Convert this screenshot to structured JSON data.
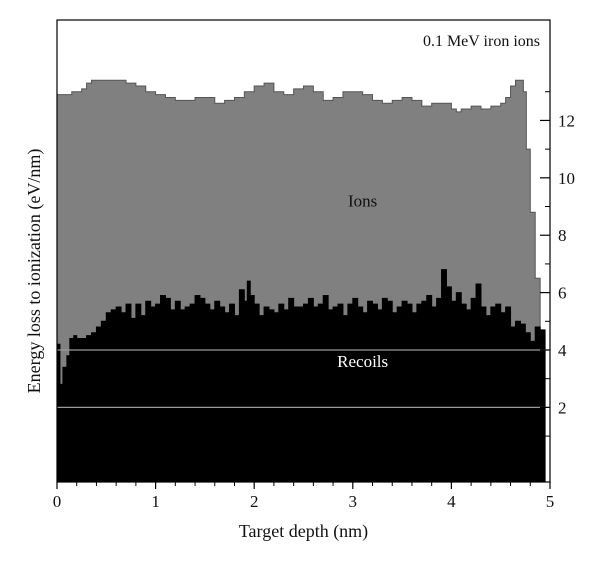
{
  "chart_data": {
    "type": "area",
    "title": "0.1 MeV iron ions",
    "xlabel": "Target depth (nm)",
    "ylabel": "Energy loss to ionization (eV/nm)",
    "xlim": [
      0,
      5
    ],
    "ylim": [
      -0.6,
      15.5
    ],
    "x_ticks": [
      0,
      1,
      2,
      3,
      4,
      5
    ],
    "y_ticks": [
      2,
      4,
      6,
      8,
      10,
      12
    ],
    "y_axis_side": "right",
    "grid": false,
    "series": [
      {
        "name": "Ions",
        "color": "#808080",
        "x": [
          0,
          0.05,
          0.1,
          0.15,
          0.2,
          0.25,
          0.3,
          0.35,
          0.4,
          0.45,
          0.5,
          0.6,
          0.7,
          0.8,
          0.9,
          1.0,
          1.1,
          1.2,
          1.3,
          1.4,
          1.5,
          1.6,
          1.7,
          1.8,
          1.9,
          2.0,
          2.1,
          2.2,
          2.3,
          2.4,
          2.5,
          2.6,
          2.7,
          2.8,
          2.9,
          3.0,
          3.1,
          3.2,
          3.3,
          3.4,
          3.5,
          3.6,
          3.7,
          3.8,
          3.9,
          4.0,
          4.05,
          4.1,
          4.2,
          4.3,
          4.4,
          4.5,
          4.55,
          4.6,
          4.65,
          4.7,
          4.73,
          4.76,
          4.8,
          4.85,
          4.9,
          4.95
        ],
        "values": [
          12.9,
          12.9,
          12.9,
          13.0,
          13.0,
          13.1,
          13.3,
          13.4,
          13.4,
          13.4,
          13.4,
          13.4,
          13.3,
          13.2,
          13.0,
          12.9,
          12.8,
          12.7,
          12.7,
          12.8,
          12.8,
          12.6,
          12.7,
          12.8,
          13.0,
          13.2,
          13.3,
          13.0,
          12.9,
          13.1,
          13.2,
          13.0,
          12.7,
          12.8,
          13.0,
          13.0,
          12.9,
          12.7,
          12.6,
          12.7,
          12.8,
          12.7,
          12.5,
          12.6,
          12.6,
          12.4,
          12.3,
          12.4,
          12.5,
          12.4,
          12.5,
          12.6,
          12.8,
          13.2,
          13.4,
          13.4,
          13.0,
          11.0,
          8.8,
          6.5,
          4.5,
          1.5
        ]
      },
      {
        "name": "Recoils",
        "color": "#000000",
        "x": [
          0,
          0.03,
          0.06,
          0.1,
          0.13,
          0.17,
          0.2,
          0.25,
          0.3,
          0.35,
          0.4,
          0.45,
          0.5,
          0.55,
          0.6,
          0.65,
          0.7,
          0.75,
          0.8,
          0.85,
          0.9,
          0.95,
          1.0,
          1.05,
          1.1,
          1.15,
          1.2,
          1.25,
          1.3,
          1.35,
          1.4,
          1.45,
          1.5,
          1.55,
          1.6,
          1.65,
          1.7,
          1.75,
          1.8,
          1.85,
          1.9,
          1.93,
          1.96,
          2.0,
          2.05,
          2.1,
          2.15,
          2.2,
          2.25,
          2.3,
          2.35,
          2.4,
          2.45,
          2.5,
          2.55,
          2.6,
          2.65,
          2.7,
          2.75,
          2.8,
          2.85,
          2.9,
          2.95,
          3.0,
          3.05,
          3.1,
          3.15,
          3.2,
          3.25,
          3.3,
          3.35,
          3.4,
          3.45,
          3.5,
          3.55,
          3.6,
          3.65,
          3.7,
          3.75,
          3.8,
          3.85,
          3.9,
          3.95,
          4.0,
          4.05,
          4.1,
          4.15,
          4.2,
          4.25,
          4.3,
          4.35,
          4.4,
          4.45,
          4.5,
          4.55,
          4.6,
          4.65,
          4.7,
          4.75,
          4.8,
          4.85,
          4.9,
          4.95
        ],
        "values": [
          4.2,
          2.8,
          3.4,
          3.8,
          4.4,
          4.5,
          4.4,
          4.4,
          4.5,
          4.6,
          4.8,
          5.0,
          5.3,
          5.4,
          5.5,
          5.3,
          5.6,
          5.1,
          5.6,
          5.2,
          5.7,
          5.5,
          5.6,
          5.9,
          5.8,
          5.4,
          5.7,
          5.4,
          5.5,
          5.6,
          5.9,
          5.8,
          5.6,
          5.4,
          5.7,
          5.5,
          5.3,
          5.6,
          5.2,
          6.1,
          5.7,
          6.4,
          5.9,
          5.6,
          5.2,
          5.5,
          5.4,
          5.3,
          5.6,
          5.4,
          5.8,
          5.5,
          5.5,
          5.6,
          5.8,
          5.5,
          5.6,
          5.9,
          5.4,
          5.5,
          5.6,
          5.2,
          5.6,
          5.8,
          5.5,
          5.3,
          5.7,
          5.6,
          5.4,
          5.8,
          5.7,
          5.3,
          5.5,
          5.7,
          5.6,
          5.3,
          5.6,
          5.7,
          5.9,
          5.5,
          5.8,
          6.8,
          6.2,
          5.7,
          6.0,
          5.6,
          5.4,
          5.8,
          6.3,
          5.5,
          5.2,
          5.5,
          5.6,
          5.3,
          5.5,
          4.8,
          5.0,
          4.9,
          4.6,
          4.3,
          4.8,
          4.7,
          1.5
        ]
      }
    ],
    "reference_lines": [
      4,
      2
    ],
    "annotations": [
      {
        "text": "Ions",
        "x": 3.1,
        "y": 9.0
      },
      {
        "text": "Recoils",
        "x": 3.1,
        "y": 3.4
      }
    ]
  }
}
